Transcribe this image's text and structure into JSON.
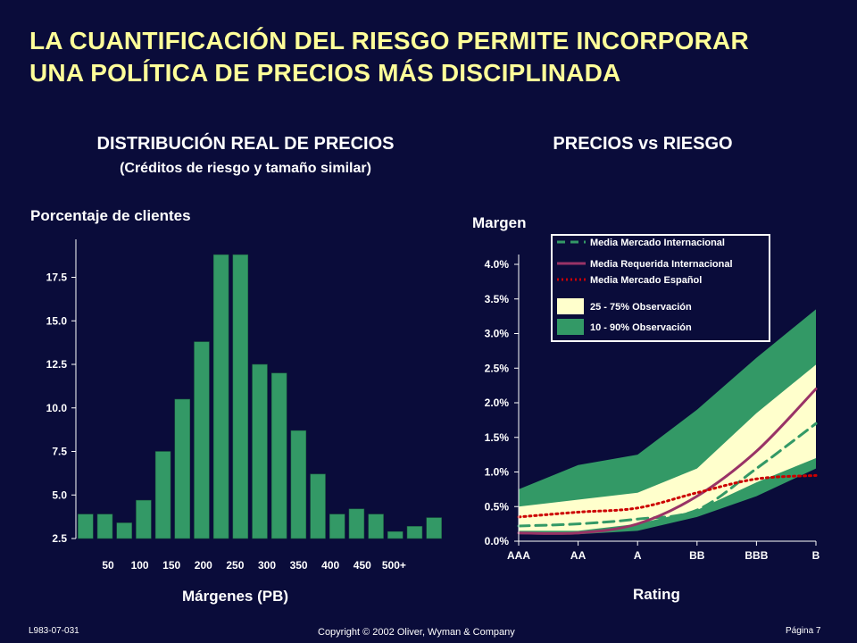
{
  "title": {
    "line1": "LA CUANTIFICACIÓN DEL RIESGO PERMITE INCORPORAR",
    "line2": "UNA POLÍTICA DE PRECIOS MÁS DISCIPLINADA"
  },
  "colors": {
    "background": "#0a0c3a",
    "title": "#ffff99",
    "bar": "#339966",
    "band_10_90": "#339966",
    "band_25_75": "#ffffcc",
    "int_market": "#339966",
    "int_required": "#993366",
    "spanish_market": "#cc0000"
  },
  "chart_data": [
    {
      "type": "bar",
      "title": "DISTRIBUCIÓN REAL DE PRECIOS",
      "subtitle": "(Créditos de riesgo y tamaño similar)",
      "ylabel": "Porcentaje de clientes",
      "xlabel": "Márgenes (PB)",
      "ylim": [
        2.5,
        20
      ],
      "yticks": [
        "2.5",
        "5.0",
        "7.5",
        "10.0",
        "12.5",
        "15.0",
        "17.5"
      ],
      "xtick_labels": [
        "50",
        "100",
        "150",
        "200",
        "250",
        "300",
        "350",
        "400",
        "450",
        "500+"
      ],
      "values": [
        3.9,
        3.9,
        3.4,
        4.7,
        7.5,
        10.5,
        13.8,
        18.8,
        18.8,
        12.5,
        12.0,
        8.7,
        6.2,
        3.9,
        4.2,
        3.9,
        2.9,
        3.2,
        3.7
      ],
      "grid": false
    },
    {
      "type": "area",
      "title": "PRECIOS vs RIESGO",
      "ylabel": "Margen",
      "xlabel": "Rating",
      "categories": [
        "AAA",
        "AA",
        "A",
        "BB",
        "BBB",
        "B"
      ],
      "yticks": [
        "0.0%",
        "0.5%",
        "1.0%",
        "1.5%",
        "2.0%",
        "2.5%",
        "3.0%",
        "3.5%",
        "4.0%"
      ],
      "ylim": [
        0,
        4.2
      ],
      "legend_position": "top-right",
      "bands": [
        {
          "name": "10 - 90% Observación",
          "low": [
            0.1,
            0.1,
            0.15,
            0.35,
            0.65,
            1.05
          ],
          "high": [
            0.75,
            1.1,
            1.25,
            1.9,
            2.65,
            3.35
          ]
        },
        {
          "name": "25 - 75% Observación",
          "low": [
            0.15,
            0.15,
            0.25,
            0.45,
            0.85,
            1.2
          ],
          "high": [
            0.5,
            0.6,
            0.7,
            1.05,
            1.85,
            2.55
          ]
        }
      ],
      "series": [
        {
          "name": "Media Mercado Internacional",
          "style": "dashed",
          "values": [
            0.22,
            0.25,
            0.32,
            0.45,
            1.05,
            1.7
          ]
        },
        {
          "name": "Media Requerida Internacional",
          "style": "solid",
          "values": [
            0.12,
            0.12,
            0.25,
            0.65,
            1.3,
            2.2
          ]
        },
        {
          "name": "Media Mercado Español",
          "style": "dotted",
          "values": [
            0.35,
            0.42,
            0.48,
            0.7,
            0.9,
            0.95
          ]
        }
      ]
    }
  ],
  "footer": {
    "code": "L983-07-031",
    "copyright": "Copyright © 2002 Oliver, Wyman & Company",
    "page": "Página 7"
  }
}
